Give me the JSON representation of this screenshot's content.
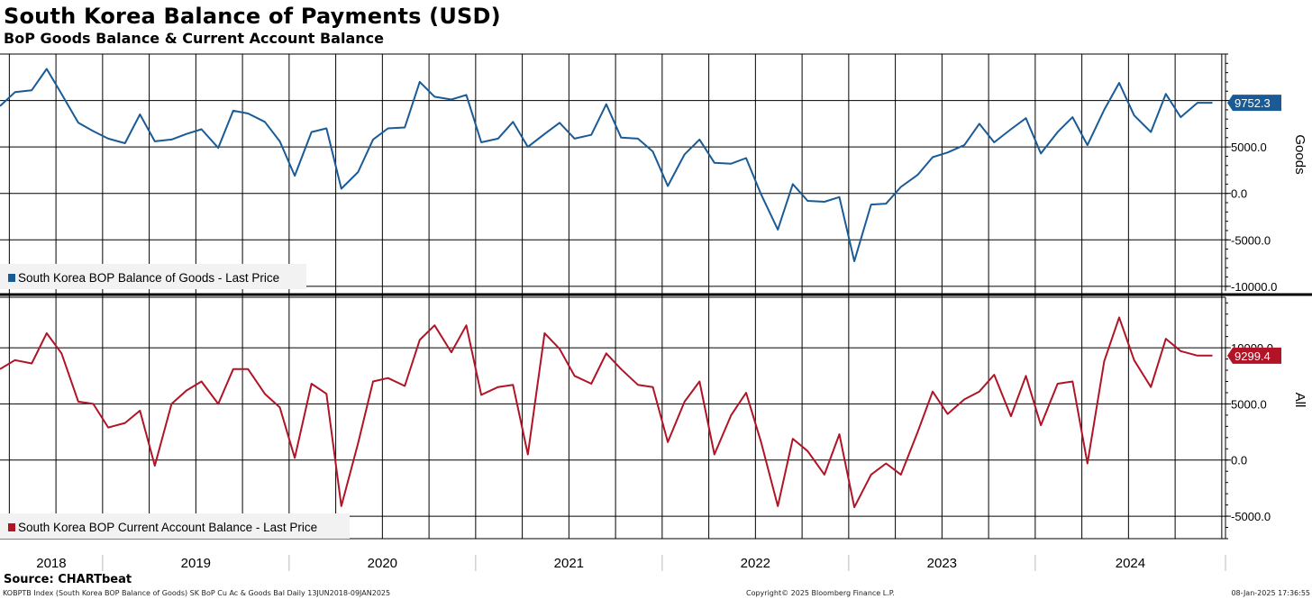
{
  "title": "South Korea Balance of Payments (USD)",
  "subtitle": "BoP Goods Balance & Current Account Balance",
  "source": "Source: CHARTbeat",
  "footer": {
    "left": "KOBPTB Index (South Korea BOP Balance of Goods) SK BoP Cu Ac & Goods Bal  Daily 13JUN2018-09JAN2025",
    "center": "Copyright© 2025 Bloomberg Finance L.P.",
    "right": "08-Jan-2025 17:36:55"
  },
  "colors": {
    "goods": "#1a5b96",
    "current_account": "#b01426",
    "grid": "#000000"
  },
  "x_axis": {
    "years": [
      "2018",
      "2019",
      "2020",
      "2021",
      "2022",
      "2023",
      "2024"
    ],
    "start": 2018.45,
    "end": 2025.02
  },
  "chart_data": [
    {
      "type": "line",
      "series_name": "South Korea BOP Balance of Goods - Last Price",
      "axis_label": "Goods",
      "ylim": [
        -10500,
        15000
      ],
      "yticks": [
        -10000,
        -5000,
        0,
        5000,
        10000
      ],
      "ytick_labels": [
        "-10000.0",
        "-5000.0",
        "0.0",
        "5000.0",
        ""
      ],
      "last_value_label": "9752.3",
      "x": [
        2018.45,
        2018.53,
        2018.62,
        2018.7,
        2018.78,
        2018.87,
        2018.95,
        2019.03,
        2019.12,
        2019.2,
        2019.28,
        2019.37,
        2019.45,
        2019.53,
        2019.62,
        2019.7,
        2019.78,
        2019.87,
        2019.95,
        2020.03,
        2020.12,
        2020.2,
        2020.28,
        2020.37,
        2020.45,
        2020.53,
        2020.62,
        2020.7,
        2020.78,
        2020.87,
        2020.95,
        2021.03,
        2021.12,
        2021.2,
        2021.28,
        2021.37,
        2021.45,
        2021.53,
        2021.62,
        2021.7,
        2021.78,
        2021.87,
        2021.95,
        2022.03,
        2022.12,
        2022.2,
        2022.28,
        2022.37,
        2022.45,
        2022.53,
        2022.62,
        2022.7,
        2022.78,
        2022.87,
        2022.95,
        2023.03,
        2023.12,
        2023.2,
        2023.28,
        2023.37,
        2023.45,
        2023.53,
        2023.62,
        2023.7,
        2023.78,
        2023.87,
        2023.95,
        2024.03,
        2024.12,
        2024.2,
        2024.28,
        2024.37,
        2024.45,
        2024.53,
        2024.62,
        2024.7,
        2024.78,
        2024.87,
        2024.95
      ],
      "values": [
        9400,
        10900,
        11100,
        13400,
        10700,
        7600,
        6700,
        5900,
        5400,
        8500,
        5600,
        5800,
        6400,
        6900,
        4900,
        8900,
        8600,
        7700,
        5600,
        1900,
        6600,
        7000,
        500,
        2300,
        5800,
        7000,
        7100,
        12000,
        10400,
        10100,
        10600,
        5500,
        5900,
        7700,
        5000,
        6400,
        7600,
        5900,
        6300,
        9600,
        6000,
        5900,
        4500,
        800,
        4200,
        5800,
        3300,
        3200,
        3800,
        -100,
        -3900,
        1000,
        -800,
        -900,
        -400,
        -7300,
        -1200,
        -1100,
        700,
        2000,
        3900,
        4400,
        5200,
        7500,
        5500,
        6900,
        8100,
        4300,
        6600,
        8200,
        5200,
        9000,
        11900,
        8400,
        6600,
        10700,
        8200,
        9752.3,
        9752.3
      ]
    },
    {
      "type": "line",
      "series_name": "South Korea BOP Current Account Balance - Last Price",
      "axis_label": "All",
      "ylim": [
        -7000,
        14500
      ],
      "yticks": [
        -5000,
        0,
        5000,
        10000
      ],
      "ytick_labels": [
        "-5000.0",
        "0.0",
        "5000.0",
        "10000.0"
      ],
      "last_value_label": "9299.4",
      "x": [
        2018.45,
        2018.53,
        2018.62,
        2018.7,
        2018.78,
        2018.87,
        2018.95,
        2019.03,
        2019.12,
        2019.2,
        2019.28,
        2019.37,
        2019.45,
        2019.53,
        2019.62,
        2019.7,
        2019.78,
        2019.87,
        2019.95,
        2020.03,
        2020.12,
        2020.2,
        2020.28,
        2020.37,
        2020.45,
        2020.53,
        2020.62,
        2020.7,
        2020.78,
        2020.87,
        2020.95,
        2021.03,
        2021.12,
        2021.2,
        2021.28,
        2021.37,
        2021.45,
        2021.53,
        2021.62,
        2021.7,
        2021.78,
        2021.87,
        2021.95,
        2022.03,
        2022.12,
        2022.2,
        2022.28,
        2022.37,
        2022.45,
        2022.53,
        2022.62,
        2022.7,
        2022.78,
        2022.87,
        2022.95,
        2023.03,
        2023.12,
        2023.2,
        2023.28,
        2023.37,
        2023.45,
        2023.53,
        2023.62,
        2023.7,
        2023.78,
        2023.87,
        2023.95,
        2024.03,
        2024.12,
        2024.2,
        2024.28,
        2024.37,
        2024.45,
        2024.53,
        2024.62,
        2024.7,
        2024.78,
        2024.87,
        2024.95
      ],
      "values": [
        8100,
        8900,
        8600,
        11300,
        9500,
        5200,
        5000,
        2900,
        3300,
        4400,
        -500,
        5000,
        6200,
        7000,
        5000,
        8100,
        8100,
        5900,
        4700,
        200,
        6800,
        5900,
        -4100,
        1500,
        7000,
        7300,
        6600,
        10700,
        12000,
        9600,
        12000,
        5800,
        6500,
        6700,
        500,
        11300,
        9900,
        7500,
        6800,
        9500,
        8100,
        6700,
        6500,
        1600,
        5200,
        7000,
        500,
        4000,
        6000,
        1600,
        -4100,
        1900,
        800,
        -1300,
        2300,
        -4200,
        -1300,
        -300,
        -1300,
        2500,
        6100,
        4100,
        5400,
        6100,
        7600,
        3900,
        7500,
        3100,
        6800,
        7000,
        -300,
        8800,
        12700,
        8900,
        6500,
        10800,
        9700,
        9299.4,
        9299.4
      ]
    }
  ]
}
